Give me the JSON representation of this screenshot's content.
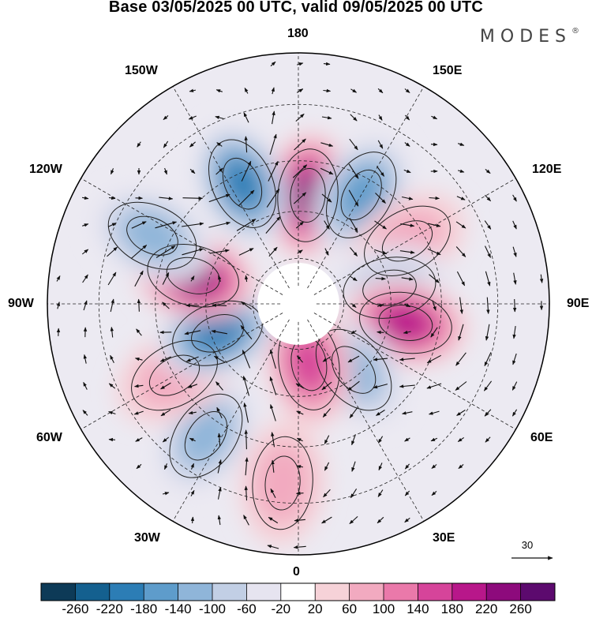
{
  "title": "Base 03/05/2025 00 UTC, valid 09/05/2025 00 UTC",
  "brand": "MODES",
  "brand_mark": "®",
  "longitude_labels": {
    "top": "180",
    "bottom": "0",
    "left": "90W",
    "right": "90E",
    "upper_left": "150W",
    "upper_right": "150E",
    "mid_left": "120W",
    "mid_right": "120E",
    "lower_left": "60W",
    "lower_right": "60E",
    "bottom_left": "30W",
    "bottom_right": "30E"
  },
  "reference_vector": "30",
  "colorbar": {
    "labels": [
      "-260",
      "-220",
      "-180",
      "-140",
      "-100",
      "-60",
      "-20",
      "20",
      "60",
      "100",
      "140",
      "180",
      "220",
      "260"
    ],
    "colors": [
      "#0d3a57",
      "#14608f",
      "#2c7db5",
      "#5e9ccb",
      "#8fb5d9",
      "#c2cfe5",
      "#e6e4f0",
      "#ffffff",
      "#f6d2d8",
      "#f2aac0",
      "#ea79aa",
      "#d6449a",
      "#b8178a",
      "#8d0a7c",
      "#5c0a6e"
    ]
  },
  "map": {
    "projection": "north-polar-stereographic",
    "field": "geopotential height anomaly with wind vectors",
    "anomalies": [
      {
        "lon_deg": 175,
        "lat_deg": 55,
        "value": 240,
        "sign": "positive"
      },
      {
        "lon_deg": 150,
        "lat_deg": 50,
        "value": -140,
        "sign": "negative"
      },
      {
        "lon_deg": 120,
        "lat_deg": 50,
        "value": 70,
        "sign": "positive"
      },
      {
        "lon_deg": 100,
        "lat_deg": 60,
        "value": -80,
        "sign": "negative"
      },
      {
        "lon_deg": 80,
        "lat_deg": 55,
        "value": 180,
        "sign": "positive"
      },
      {
        "lon_deg": 40,
        "lat_deg": 62,
        "value": -130,
        "sign": "negative"
      },
      {
        "lon_deg": 10,
        "lat_deg": 70,
        "value": 170,
        "sign": "positive"
      },
      {
        "lon_deg": 355,
        "lat_deg": 35,
        "value": 80,
        "sign": "positive"
      },
      {
        "lon_deg": 325,
        "lat_deg": 40,
        "value": -110,
        "sign": "negative"
      },
      {
        "lon_deg": 300,
        "lat_deg": 45,
        "value": 80,
        "sign": "positive"
      },
      {
        "lon_deg": 290,
        "lat_deg": 62,
        "value": -180,
        "sign": "negative"
      },
      {
        "lon_deg": 255,
        "lat_deg": 55,
        "value": 230,
        "sign": "positive"
      },
      {
        "lon_deg": 245,
        "lat_deg": 40,
        "value": -100,
        "sign": "negative"
      },
      {
        "lon_deg": 205,
        "lat_deg": 48,
        "value": -210,
        "sign": "negative"
      }
    ]
  }
}
